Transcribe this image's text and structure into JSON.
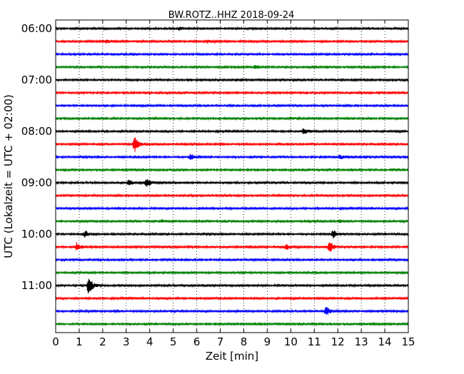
{
  "chart_data": {
    "type": "line",
    "title": "BW.ROTZ..HHZ 2018-09-24",
    "xlabel": "Zeit  [min]",
    "ylabel": "UTC (Lokalzeit = UTC + 02:00)",
    "xlim": [
      0,
      15
    ],
    "x_ticks": [
      0,
      1,
      2,
      3,
      4,
      5,
      6,
      7,
      8,
      9,
      10,
      11,
      12,
      13,
      14,
      15
    ],
    "x_tick_labels": [
      "0",
      "1",
      "2",
      "3",
      "4",
      "5",
      "6",
      "7",
      "8",
      "9",
      "10",
      "11",
      "12",
      "13",
      "14",
      "15"
    ],
    "y_tick_labels": [
      "06:00",
      "07:00",
      "08:00",
      "09:00",
      "10:00",
      "11:00"
    ],
    "grid": "vertical dotted",
    "trace_start": "06:00",
    "trace_interval_minutes": 15,
    "colors": [
      "#000000",
      "#ff0000",
      "#0000ff",
      "#008000"
    ],
    "traces": [
      {
        "start": "06:00",
        "color": "#000000",
        "events": [
          {
            "t": 5.25,
            "amp": 0.1
          }
        ]
      },
      {
        "start": "06:15",
        "color": "#ff0000",
        "events": [
          {
            "t": 2.15,
            "amp": 0.15
          },
          {
            "t": 6.45,
            "amp": 0.1
          }
        ]
      },
      {
        "start": "06:30",
        "color": "#0000ff",
        "events": []
      },
      {
        "start": "06:45",
        "color": "#008000",
        "events": [
          {
            "t": 8.5,
            "amp": 0.15
          }
        ]
      },
      {
        "start": "07:00",
        "color": "#000000",
        "events": []
      },
      {
        "start": "07:15",
        "color": "#ff0000",
        "events": []
      },
      {
        "start": "07:30",
        "color": "#0000ff",
        "events": []
      },
      {
        "start": "07:45",
        "color": "#008000",
        "events": [
          {
            "t": 10.0,
            "amp": 0.1
          }
        ]
      },
      {
        "start": "08:00",
        "color": "#000000",
        "events": [
          {
            "t": 10.55,
            "amp": 0.25
          }
        ]
      },
      {
        "start": "08:15",
        "color": "#ff0000",
        "events": [
          {
            "t": 3.35,
            "amp": 0.6
          }
        ]
      },
      {
        "start": "08:30",
        "color": "#0000ff",
        "events": [
          {
            "t": 5.75,
            "amp": 0.25
          },
          {
            "t": 12.1,
            "amp": 0.15
          }
        ]
      },
      {
        "start": "08:45",
        "color": "#008000",
        "events": []
      },
      {
        "start": "09:00",
        "color": "#000000",
        "events": [
          {
            "t": 3.1,
            "amp": 0.2
          },
          {
            "t": 3.85,
            "amp": 0.35
          }
        ]
      },
      {
        "start": "09:15",
        "color": "#ff0000",
        "events": []
      },
      {
        "start": "09:30",
        "color": "#0000ff",
        "events": []
      },
      {
        "start": "09:45",
        "color": "#008000",
        "events": [
          {
            "t": 4.5,
            "amp": 0.1
          },
          {
            "t": 12.1,
            "amp": 0.1
          }
        ]
      },
      {
        "start": "10:00",
        "color": "#000000",
        "events": [
          {
            "t": 1.25,
            "amp": 0.25
          },
          {
            "t": 11.8,
            "amp": 0.3
          }
        ]
      },
      {
        "start": "10:15",
        "color": "#ff0000",
        "events": [
          {
            "t": 0.9,
            "amp": 0.3
          },
          {
            "t": 9.8,
            "amp": 0.2
          },
          {
            "t": 11.65,
            "amp": 0.45
          }
        ]
      },
      {
        "start": "10:30",
        "color": "#0000ff",
        "events": []
      },
      {
        "start": "10:45",
        "color": "#008000",
        "events": []
      },
      {
        "start": "11:00",
        "color": "#000000",
        "events": [
          {
            "t": 1.4,
            "amp": 0.65
          }
        ]
      },
      {
        "start": "11:15",
        "color": "#ff0000",
        "events": []
      },
      {
        "start": "11:30",
        "color": "#0000ff",
        "events": [
          {
            "t": 11.5,
            "amp": 0.3
          }
        ]
      },
      {
        "start": "11:45",
        "color": "#008000",
        "events": []
      }
    ]
  }
}
